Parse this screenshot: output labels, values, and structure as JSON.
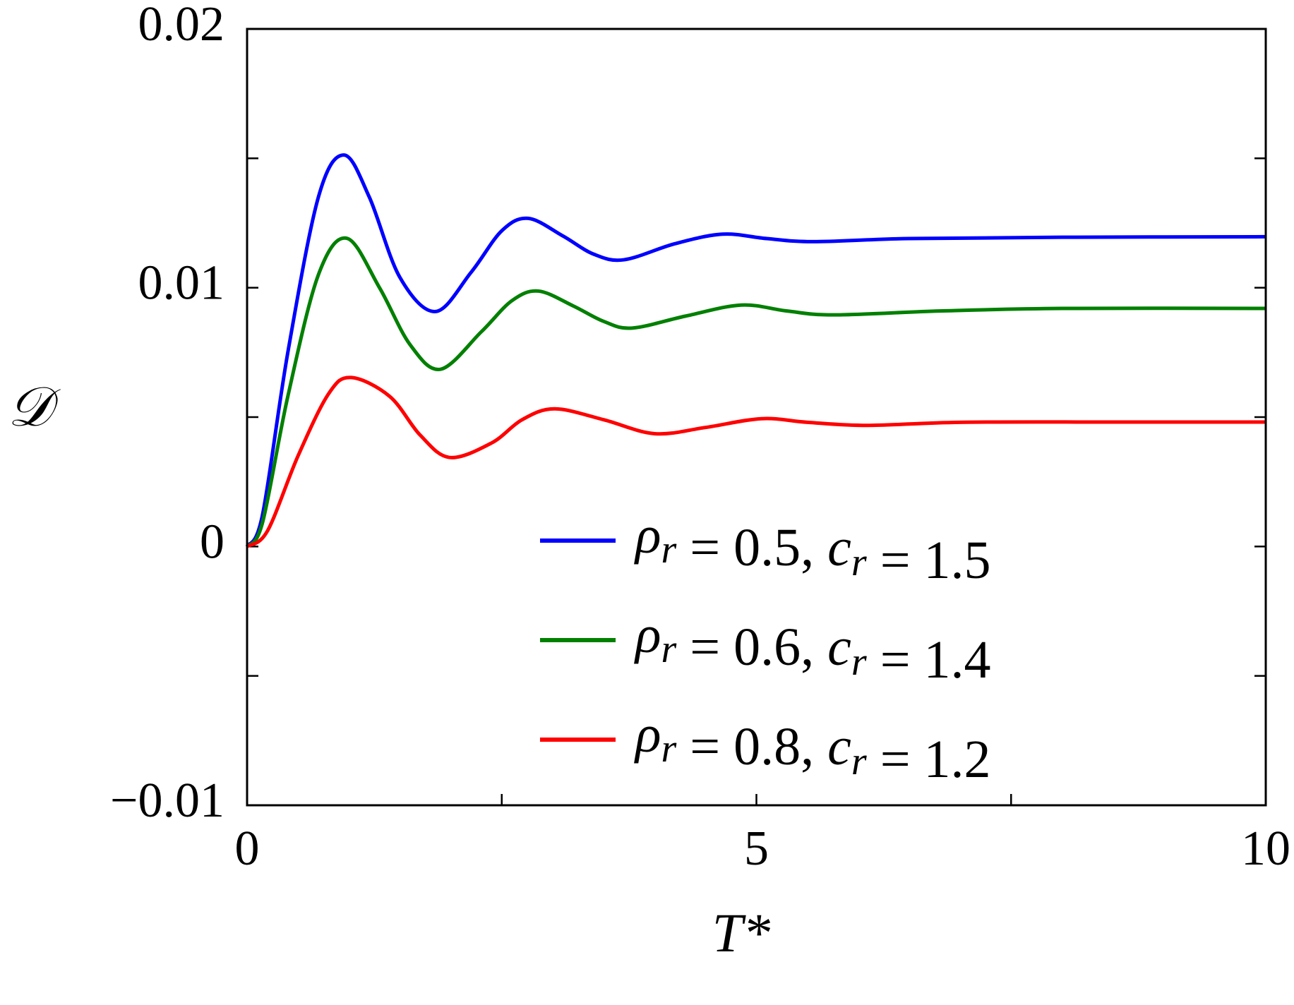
{
  "chart_data": {
    "type": "line",
    "x_label": "T*",
    "y_label": "𝒟",
    "xlim": [
      0,
      10
    ],
    "xticks": [
      0,
      5,
      10
    ],
    "x_minor_ticks": [
      2.5,
      7.5
    ],
    "ylim": [
      -0.01,
      0.02
    ],
    "yticks": [
      {
        "value": -0.01,
        "label": "−0.01"
      },
      0,
      0.01,
      0.02
    ],
    "y_minor_ticks": [
      -0.005,
      0.005,
      0.015
    ],
    "legend": "lower right",
    "series": [
      {
        "name": "ρr = 0.5, cr = 1.5",
        "color": "#0000ff",
        "x": [
          0,
          0.15,
          0.4,
          0.7,
          0.95,
          1.2,
          1.5,
          1.85,
          2.2,
          2.5,
          2.76,
          3.1,
          3.4,
          3.7,
          4.2,
          4.67,
          5.1,
          5.56,
          6.5,
          8,
          10
        ],
        "values": [
          0,
          0.0012,
          0.0075,
          0.0135,
          0.01513,
          0.0135,
          0.0104,
          0.00908,
          0.0106,
          0.0122,
          0.01268,
          0.012,
          0.0113,
          0.01108,
          0.0117,
          0.01207,
          0.0119,
          0.01178,
          0.0119,
          0.01195,
          0.01197
        ]
      },
      {
        "name": "ρr = 0.6, cr = 1.4",
        "color": "#008000",
        "x": [
          0,
          0.15,
          0.4,
          0.7,
          0.98,
          1.3,
          1.6,
          1.9,
          2.3,
          2.6,
          2.86,
          3.2,
          3.5,
          3.78,
          4.3,
          4.85,
          5.3,
          5.76,
          6.8,
          8,
          10
        ],
        "values": [
          0,
          0.0009,
          0.0058,
          0.0105,
          0.01191,
          0.01,
          0.0078,
          0.00685,
          0.0083,
          0.0095,
          0.00987,
          0.0093,
          0.0087,
          0.00844,
          0.0089,
          0.00933,
          0.0091,
          0.00895,
          0.0091,
          0.0092,
          0.0092
        ]
      },
      {
        "name": "ρr = 0.8, cr = 1.2",
        "color": "#ff0000",
        "x": [
          0,
          0.2,
          0.5,
          0.8,
          1.02,
          1.4,
          1.7,
          1.99,
          2.4,
          2.7,
          3.02,
          3.5,
          4.0,
          4.5,
          5.05,
          5.5,
          6.09,
          7,
          8.5,
          10
        ],
        "values": [
          0,
          0.0006,
          0.0035,
          0.0059,
          0.00653,
          0.0058,
          0.0043,
          0.00344,
          0.004,
          0.0049,
          0.00532,
          0.0049,
          0.00436,
          0.0046,
          0.00494,
          0.0048,
          0.00468,
          0.0048,
          0.00481,
          0.00481
        ]
      }
    ]
  }
}
